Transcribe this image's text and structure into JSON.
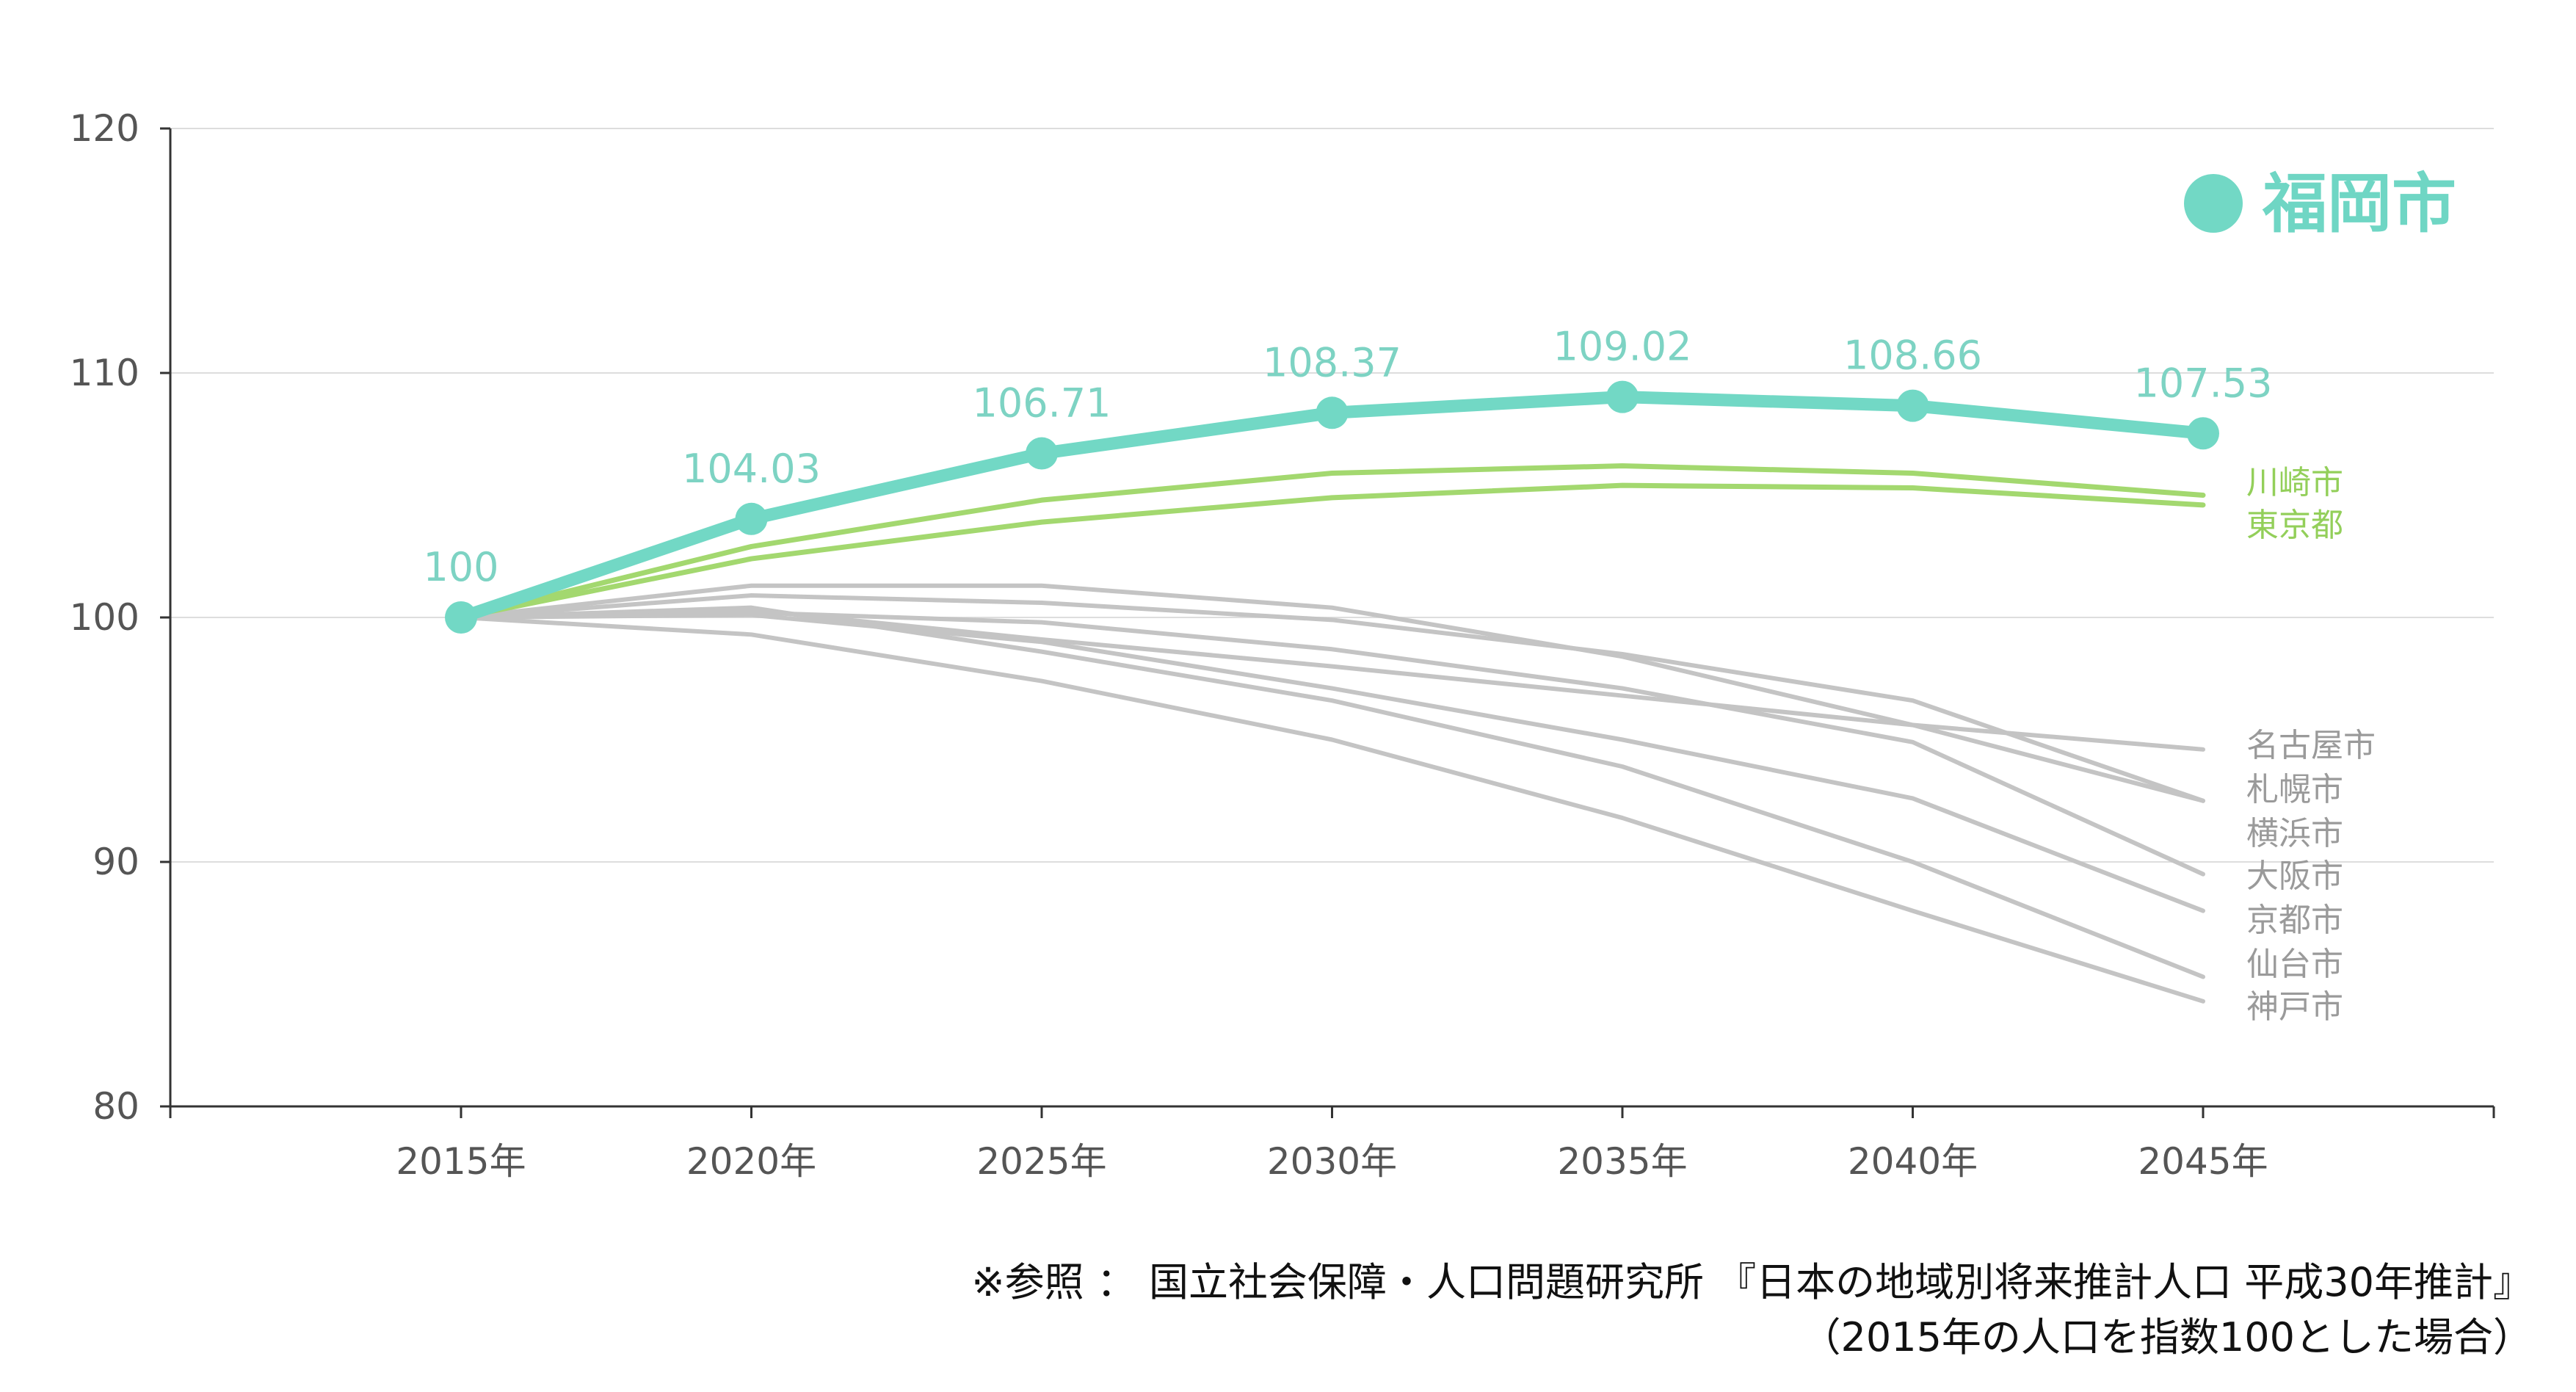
{
  "chart_data": {
    "type": "line",
    "x": [
      "2015年",
      "2020年",
      "2025年",
      "2030年",
      "2035年",
      "2040年",
      "2045年"
    ],
    "ylim": [
      80,
      120
    ],
    "yticks": [
      80,
      90,
      100,
      110,
      120
    ],
    "grid": true,
    "legend": "top-right",
    "highlight": {
      "name": "福岡市",
      "values": [
        100,
        104.03,
        106.71,
        108.37,
        109.02,
        108.66,
        107.53
      ],
      "labels": [
        "100",
        "104.03",
        "106.71",
        "108.37",
        "109.02",
        "108.66",
        "107.53"
      ],
      "color": "#72d8c5"
    },
    "series": [
      {
        "name": "川崎市",
        "values": [
          100,
          102.9,
          104.8,
          105.9,
          106.2,
          105.9,
          105.0
        ],
        "color": "#a3d86f"
      },
      {
        "name": "東京都",
        "values": [
          100,
          102.4,
          103.9,
          104.9,
          105.4,
          105.3,
          104.6
        ],
        "color": "#a3d86f"
      },
      {
        "name": "名古屋市",
        "values": [
          100,
          100.3,
          99.1,
          98.0,
          96.8,
          95.6,
          94.6
        ],
        "color": "#c4c4c4"
      },
      {
        "name": "札幌市",
        "values": [
          100,
          101.3,
          101.3,
          100.4,
          98.4,
          95.6,
          92.5
        ],
        "color": "#c4c4c4"
      },
      {
        "name": "横浜市",
        "values": [
          100,
          100.9,
          100.6,
          99.9,
          98.5,
          96.6,
          92.5
        ],
        "color": "#c4c4c4"
      },
      {
        "name": "大阪市",
        "values": [
          100,
          100.2,
          99.8,
          98.7,
          97.1,
          94.9,
          89.5
        ],
        "color": "#c4c4c4"
      },
      {
        "name": "京都市",
        "values": [
          100,
          100.1,
          99.0,
          97.1,
          95.0,
          92.6,
          88.0
        ],
        "color": "#c4c4c4"
      },
      {
        "name": "仙台市",
        "values": [
          100,
          100.4,
          98.6,
          96.6,
          93.9,
          90.0,
          85.3
        ],
        "color": "#c4c4c4"
      },
      {
        "name": "神戸市",
        "values": [
          100,
          99.3,
          97.4,
          95.0,
          91.8,
          88.0,
          84.3
        ],
        "color": "#c4c4c4"
      }
    ]
  },
  "colors": {
    "axis": "#333333",
    "grid": "#dddddd",
    "tick": "#555555",
    "other": "#c4c4c4"
  },
  "note": {
    "line1": "※参照 ： 国立社会保障・人口問題研究所 『日本の地域別将来推計人口 平成30年推計』",
    "line2": "（2015年の人口を指数100とした場合）"
  }
}
